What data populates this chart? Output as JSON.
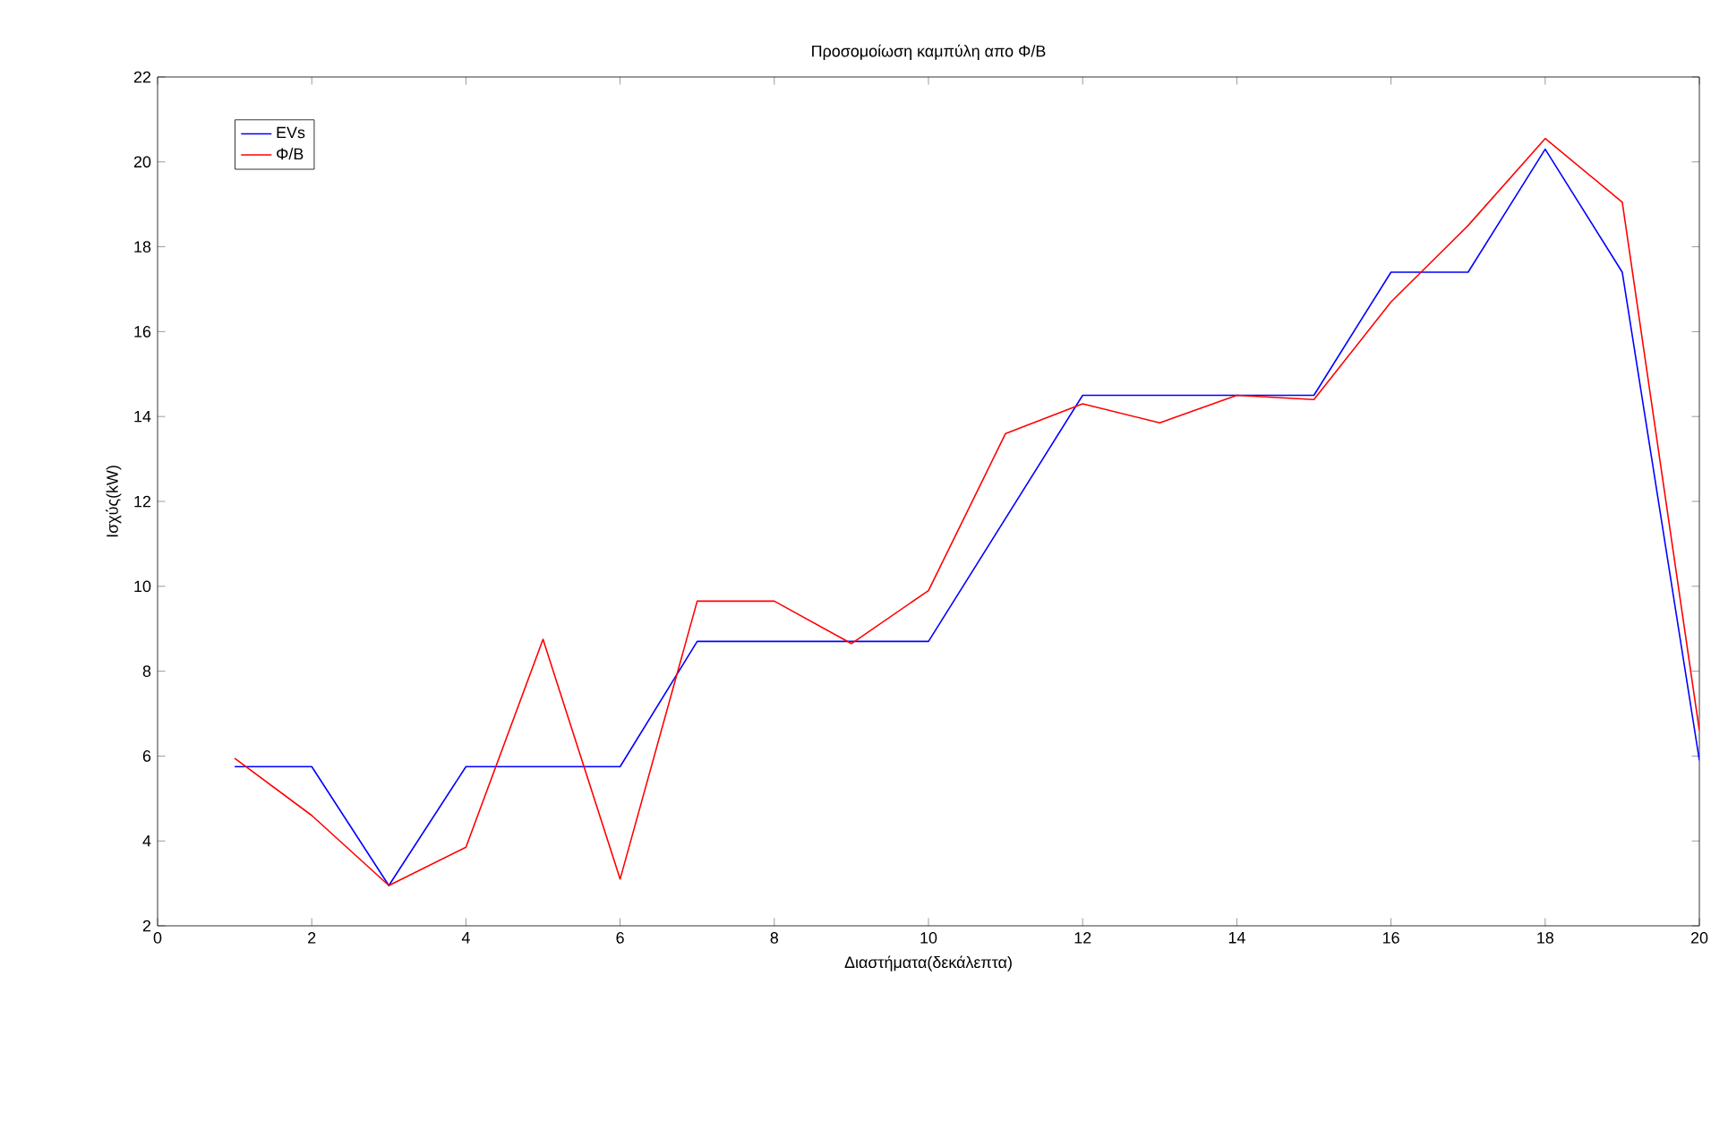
{
  "chart_data": {
    "type": "line",
    "title": "Προσομοίωση καμπύλη απο Φ/Β",
    "xlabel": "Διαστήματα(δεκάλεπτα)",
    "ylabel": "Ισχύς(kW)",
    "x": [
      1,
      2,
      3,
      4,
      5,
      6,
      7,
      8,
      9,
      10,
      11,
      12,
      13,
      14,
      15,
      16,
      17,
      18,
      19,
      20
    ],
    "series": [
      {
        "name": "EVs",
        "color": "#0000ff",
        "values": [
          5.75,
          5.75,
          2.95,
          5.75,
          5.75,
          5.75,
          8.7,
          8.7,
          8.7,
          8.7,
          11.6,
          14.5,
          14.5,
          14.5,
          14.5,
          17.4,
          17.4,
          20.3,
          17.4,
          5.9
        ]
      },
      {
        "name": "Φ/Β",
        "color": "#ff0000",
        "values": [
          5.95,
          4.6,
          2.95,
          3.85,
          8.75,
          3.1,
          9.65,
          9.65,
          8.65,
          9.9,
          13.6,
          14.3,
          13.85,
          14.5,
          14.4,
          16.7,
          18.5,
          20.55,
          19.05,
          6.6
        ]
      }
    ],
    "xlim": [
      0,
      20
    ],
    "ylim": [
      2,
      22
    ],
    "xticks": [
      0,
      2,
      4,
      6,
      8,
      10,
      12,
      14,
      16,
      18,
      20
    ],
    "yticks": [
      2,
      4,
      6,
      8,
      10,
      12,
      14,
      16,
      18,
      20,
      22
    ],
    "legend": "top left",
    "grid": false,
    "marker": "none",
    "line_style": "solid"
  }
}
